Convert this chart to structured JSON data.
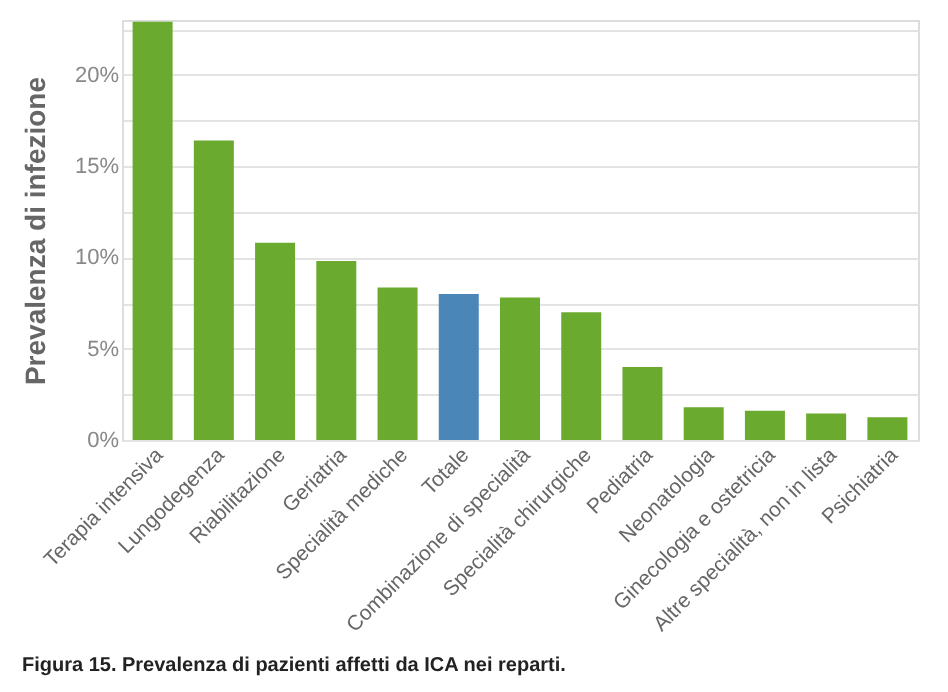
{
  "chart_data": {
    "type": "bar",
    "title": "Figura 15. Prevalenza di pazienti affetti da ICA nei reparti.",
    "ylabel": "Prevalenza di infezione",
    "categories": [
      "Terapia intensiva",
      "Lungodegenza",
      "Riabilitazione",
      "Geriatria",
      "Specialità mediche",
      "Totale",
      "Combinazione di specialità",
      "Specialità chirurgiche",
      "Pediatria",
      "Neonatologia",
      "Ginecologia e ostetricia",
      "Altre specialità, non in lista",
      "Psichiatria"
    ],
    "values": [
      22.9,
      16.4,
      10.8,
      9.8,
      8.35,
      8.0,
      7.8,
      7.0,
      4.0,
      1.8,
      1.6,
      1.45,
      1.25
    ],
    "colors": [
      "#6aaa2e",
      "#6aaa2e",
      "#6aaa2e",
      "#6aaa2e",
      "#6aaa2e",
      "#4a86b8",
      "#6aaa2e",
      "#6aaa2e",
      "#6aaa2e",
      "#6aaa2e",
      "#6aaa2e",
      "#6aaa2e",
      "#6aaa2e"
    ],
    "ylim": [
      0,
      23
    ],
    "yticks": [
      {
        "value": 0,
        "label": "0%"
      },
      {
        "value": 2.5,
        "label": null
      },
      {
        "value": 5,
        "label": "5%"
      },
      {
        "value": 7.5,
        "label": null
      },
      {
        "value": 10,
        "label": "10%"
      },
      {
        "value": 12.5,
        "label": null
      },
      {
        "value": 15,
        "label": "15%"
      },
      {
        "value": 17.5,
        "label": null
      },
      {
        "value": 20,
        "label": "20%"
      },
      {
        "value": 22.5,
        "label": null
      }
    ],
    "grid": "y"
  }
}
